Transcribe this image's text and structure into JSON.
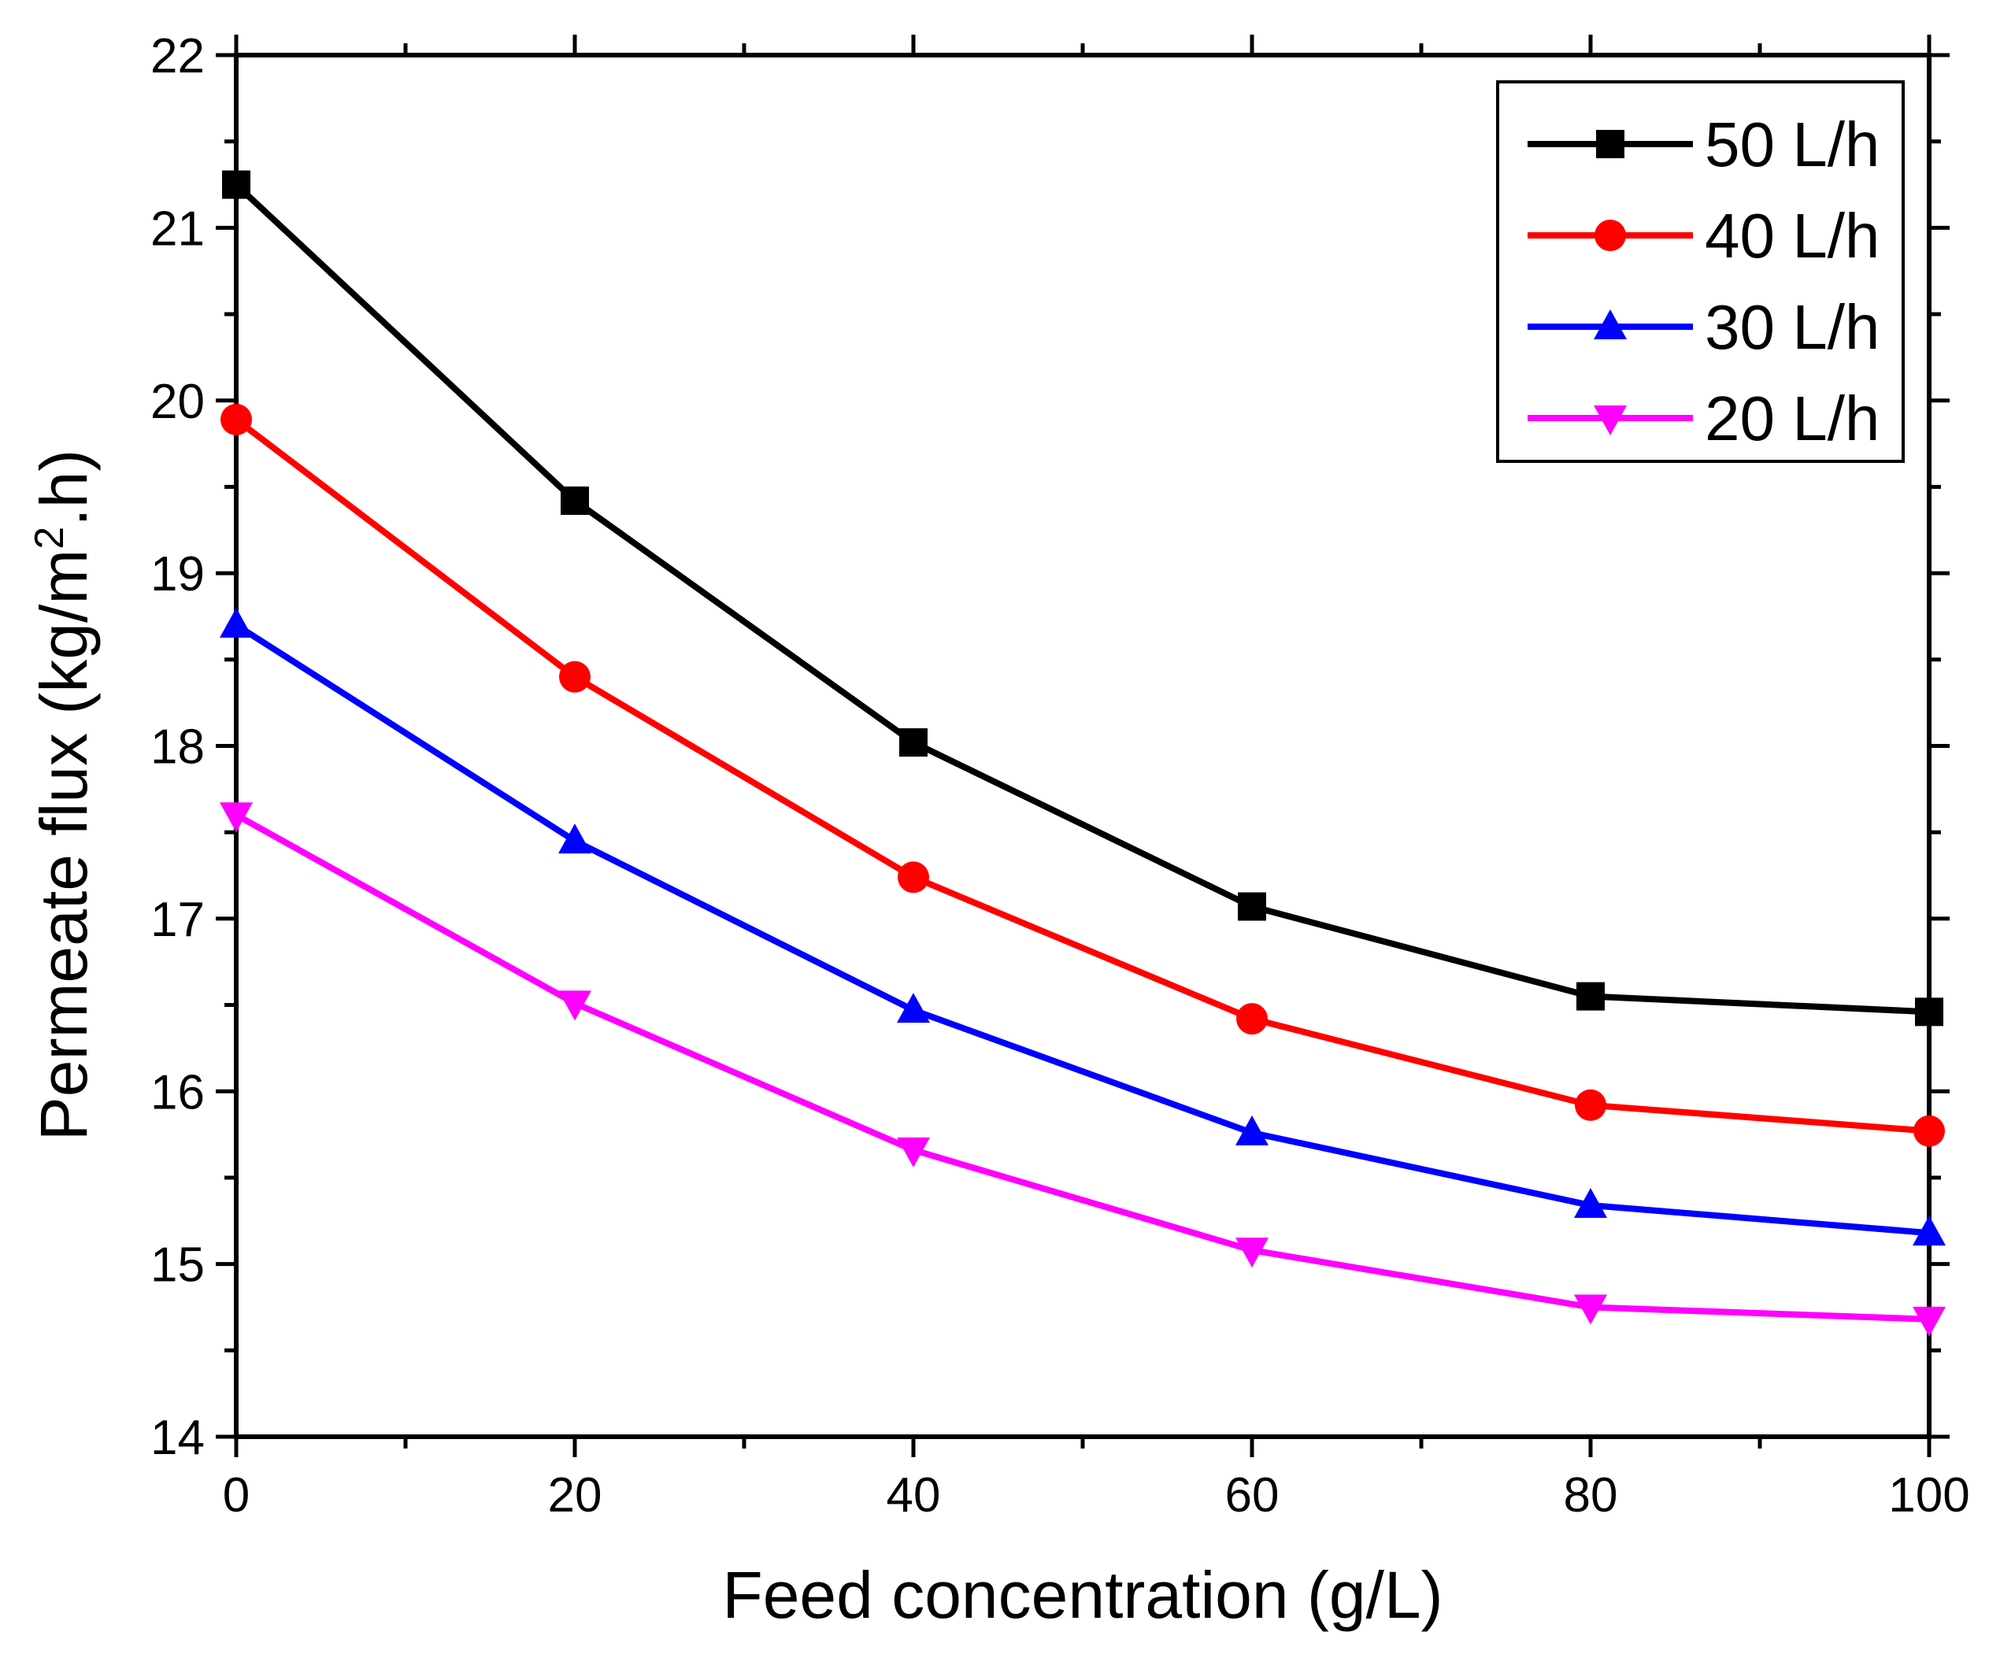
{
  "chart_data": {
    "type": "line",
    "title": "",
    "xlabel": "Feed concentration (g/L)",
    "ylabel_main": "Permeate flux (kg/m",
    "ylabel_sup": "2",
    "ylabel_tail": ".h)",
    "x": [
      0,
      20,
      40,
      60,
      80,
      100
    ],
    "xlim": [
      0,
      100
    ],
    "ylim": [
      14,
      22
    ],
    "xticks": [
      "0",
      "20",
      "40",
      "60",
      "80",
      "100"
    ],
    "yticks": [
      "14",
      "15",
      "16",
      "17",
      "18",
      "19",
      "20",
      "21",
      "22"
    ],
    "grid": false,
    "legend_position": "top-right",
    "series": [
      {
        "name": "50 L/h",
        "color": "#000000",
        "marker": "square",
        "values": [
          21.25,
          19.42,
          18.02,
          17.07,
          16.55,
          16.46
        ]
      },
      {
        "name": "40 L/h",
        "color": "#ff0000",
        "marker": "circle",
        "values": [
          19.89,
          18.4,
          17.24,
          16.42,
          15.92,
          15.77
        ]
      },
      {
        "name": "30 L/h",
        "color": "#0000ff",
        "marker": "triangle-up",
        "values": [
          18.7,
          17.45,
          16.47,
          15.76,
          15.34,
          15.18
        ]
      },
      {
        "name": "20 L/h",
        "color": "#ff00ff",
        "marker": "triangle-down",
        "values": [
          17.6,
          16.51,
          15.66,
          15.08,
          14.75,
          14.68
        ]
      }
    ]
  }
}
